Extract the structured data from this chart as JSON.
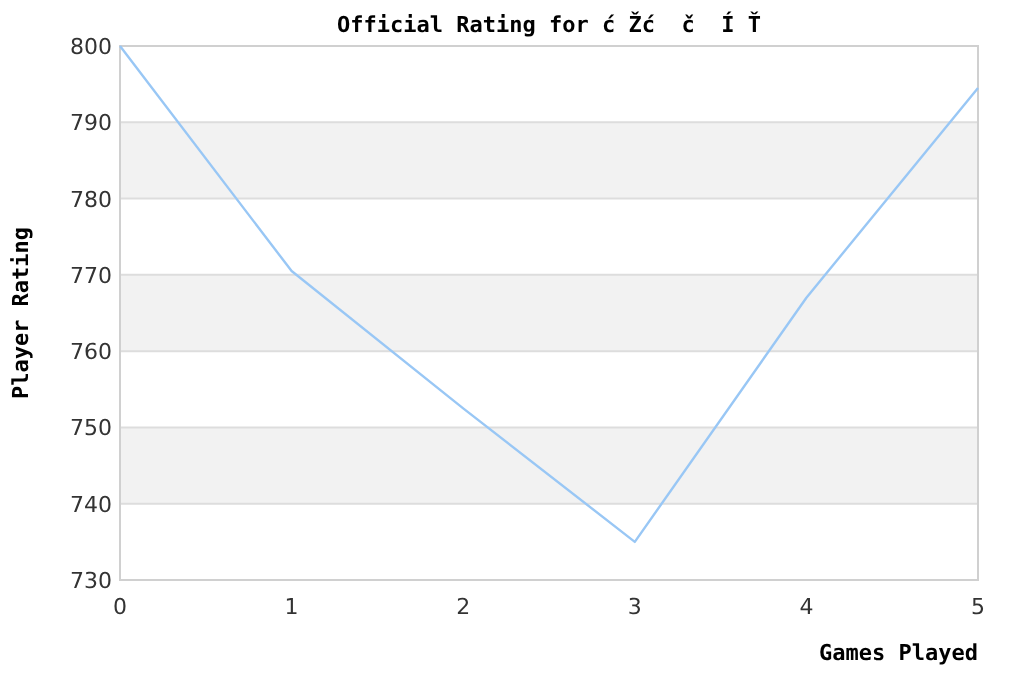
{
  "chart_data": {
    "type": "line",
    "title": "Official Rating for ć Žć  č  Í Ť",
    "xlabel": "Games Played",
    "ylabel": "Player Rating",
    "x": [
      0,
      1,
      2,
      3,
      4,
      5
    ],
    "series": [
      {
        "color": "#99c7f5",
        "values": [
          800,
          770.5,
          752.5,
          735,
          767,
          794.5
        ]
      }
    ],
    "xlim": [
      0,
      5
    ],
    "xticks": [
      0,
      1,
      2,
      3,
      4,
      5
    ],
    "ylim": [
      730,
      800
    ],
    "yticks": [
      730,
      740,
      750,
      760,
      770,
      780,
      790,
      800
    ],
    "grid": "y",
    "marker": "none",
    "line_style": "solid"
  }
}
